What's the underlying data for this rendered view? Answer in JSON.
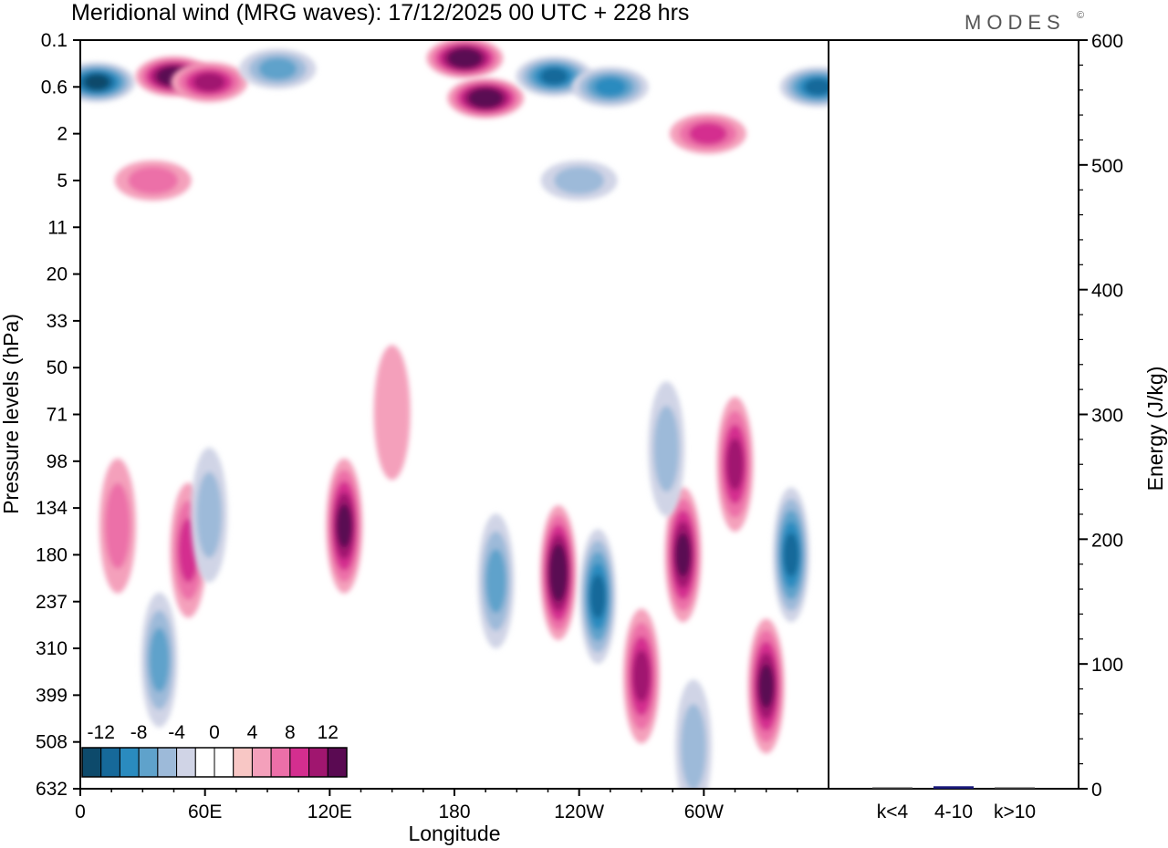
{
  "chart_data": [
    {
      "type": "heatmap",
      "title": "Meridional wind (MRG waves):  17/12/2025  00 UTC  + 228 hrs",
      "xlabel": "Longitude",
      "ylabel": "Pressure levels (hPa)",
      "x_ticks": [
        "0",
        "60E",
        "120E",
        "180",
        "120W",
        "60W"
      ],
      "x_tick_values": [
        0,
        60,
        120,
        180,
        240,
        300
      ],
      "x_range": [
        0,
        360
      ],
      "y_ticks": [
        "0.1",
        "0.6",
        "2",
        "5",
        "11",
        "20",
        "33",
        "50",
        "71",
        "98",
        "134",
        "180",
        "237",
        "310",
        "399",
        "508",
        "632"
      ],
      "colorbar": {
        "labels": [
          "-12",
          "-8",
          "-4",
          "0",
          "4",
          "8",
          "12"
        ],
        "label_values": [
          -12,
          -8,
          -4,
          0,
          4,
          8,
          12
        ],
        "colors": [
          "#0d4a6b",
          "#16699a",
          "#2a8bbf",
          "#5fa2cb",
          "#9dbad9",
          "#d0d4e6",
          "#ffffff",
          "#ffffff",
          "#f8c7c5",
          "#f4a0bb",
          "#ec6fa8",
          "#d42e8f",
          "#a0166f",
          "#5a0a52"
        ]
      },
      "features": [
        {
          "lon": 8,
          "level": 0.5,
          "value": -14
        },
        {
          "lon": 45,
          "level": 0.4,
          "value": 14
        },
        {
          "lon": 62,
          "level": 0.5,
          "value": 10
        },
        {
          "lon": 95,
          "level": 0.3,
          "value": -8
        },
        {
          "lon": 185,
          "level": 0.2,
          "value": 14
        },
        {
          "lon": 195,
          "level": 0.8,
          "value": 14
        },
        {
          "lon": 228,
          "level": 0.4,
          "value": -12
        },
        {
          "lon": 255,
          "level": 0.6,
          "value": -10
        },
        {
          "lon": 302,
          "level": 2,
          "value": 8
        },
        {
          "lon": 355,
          "level": 0.6,
          "value": -12
        },
        {
          "lon": 35,
          "level": 5,
          "value": 6
        },
        {
          "lon": 240,
          "level": 5,
          "value": -6
        },
        {
          "lon": 18,
          "level": 150,
          "value": 6
        },
        {
          "lon": 52,
          "level": 175,
          "value": 8
        },
        {
          "lon": 62,
          "level": 140,
          "value": -6
        },
        {
          "lon": 38,
          "level": 330,
          "value": -8
        },
        {
          "lon": 127,
          "level": 150,
          "value": 12
        },
        {
          "lon": 200,
          "level": 210,
          "value": -8
        },
        {
          "lon": 230,
          "level": 200,
          "value": 14
        },
        {
          "lon": 249,
          "level": 230,
          "value": -12
        },
        {
          "lon": 270,
          "level": 360,
          "value": 10
        },
        {
          "lon": 290,
          "level": 180,
          "value": 12
        },
        {
          "lon": 282,
          "level": 90,
          "value": -6
        },
        {
          "lon": 315,
          "level": 100,
          "value": 10
        },
        {
          "lon": 342,
          "level": 180,
          "value": -12
        },
        {
          "lon": 330,
          "level": 380,
          "value": 12
        },
        {
          "lon": 295,
          "level": 520,
          "value": -6
        },
        {
          "lon": 150,
          "level": 70,
          "value": 4
        }
      ]
    },
    {
      "type": "bar",
      "categories": [
        "k<4",
        "4-10",
        "k>10"
      ],
      "values": [
        0,
        2,
        0
      ],
      "ylabel": "Energy (J/kg)",
      "ylim": [
        0,
        600
      ],
      "y_ticks": [
        "0",
        "100",
        "200",
        "300",
        "400",
        "500",
        "600"
      ],
      "y_tick_values": [
        0,
        100,
        200,
        300,
        400,
        500,
        600
      ],
      "bar_color": "#1a1a7a"
    }
  ],
  "brand": {
    "logo_text": "MODES",
    "logo_mark": "©"
  }
}
